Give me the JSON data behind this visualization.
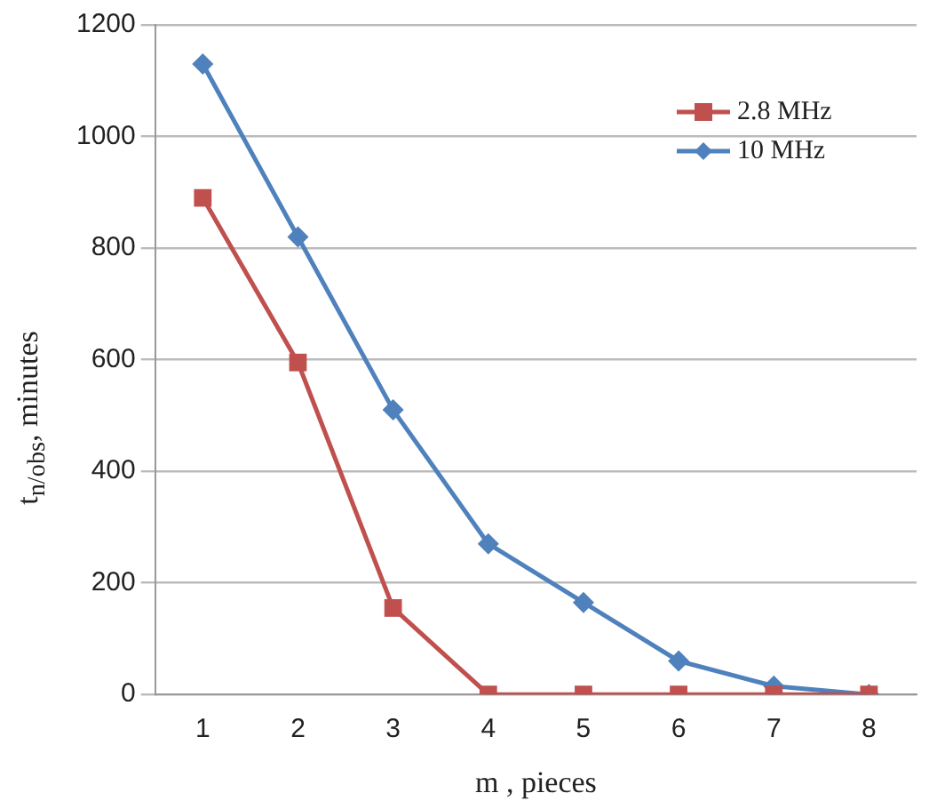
{
  "chart_data": {
    "type": "line",
    "xlabel": "m , pieces",
    "ylabel": "t$_{n/obs}$, minutes",
    "categories": [
      "1",
      "2",
      "3",
      "4",
      "5",
      "6",
      "7",
      "8"
    ],
    "series": [
      {
        "name": "2.8 MHz",
        "color": "#c0504d",
        "marker": "square",
        "values": [
          890,
          595,
          155,
          0,
          0,
          0,
          0,
          0
        ]
      },
      {
        "name": "10 MHz",
        "color": "#4f81bd",
        "marker": "diamond",
        "values": [
          1130,
          820,
          510,
          270,
          165,
          60,
          15,
          0
        ]
      }
    ],
    "ylim": [
      0,
      1200
    ],
    "yticks": [
      0,
      200,
      400,
      600,
      800,
      1000,
      1200
    ],
    "grid": "y",
    "legend": "top right",
    "line_style": "solid"
  }
}
